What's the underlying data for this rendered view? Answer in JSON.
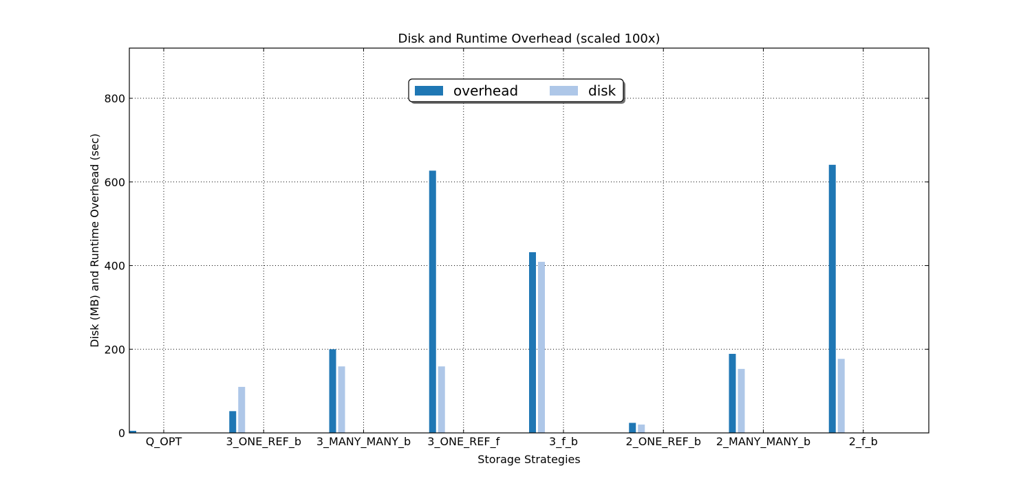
{
  "chart_data": {
    "type": "bar",
    "title": "Disk and Runtime Overhead (scaled 100x)",
    "xlabel": "Storage Strategies",
    "ylabel": "Disk (MB) and Runtime Overhead (sec)",
    "categories": [
      "Q_OPT",
      "3_ONE_REF_b",
      "3_MANY_MANY_b",
      "3_ONE_REF_f",
      "3_f_b",
      "2_ONE_REF_b",
      "2_MANY_MANY_b",
      "2_f_b"
    ],
    "series": [
      {
        "name": "overhead",
        "color": "#1f77b4",
        "values": [
          5,
          52,
          200,
          627,
          432,
          24,
          189,
          641
        ]
      },
      {
        "name": "disk",
        "color": "#aec7e8",
        "values": [
          0,
          110,
          159,
          159,
          409,
          20,
          153,
          177
        ]
      }
    ],
    "ylim": [
      0,
      920
    ],
    "yticks": [
      0,
      200,
      400,
      600,
      800
    ],
    "grid": true,
    "legend": "top-center, two columns"
  }
}
